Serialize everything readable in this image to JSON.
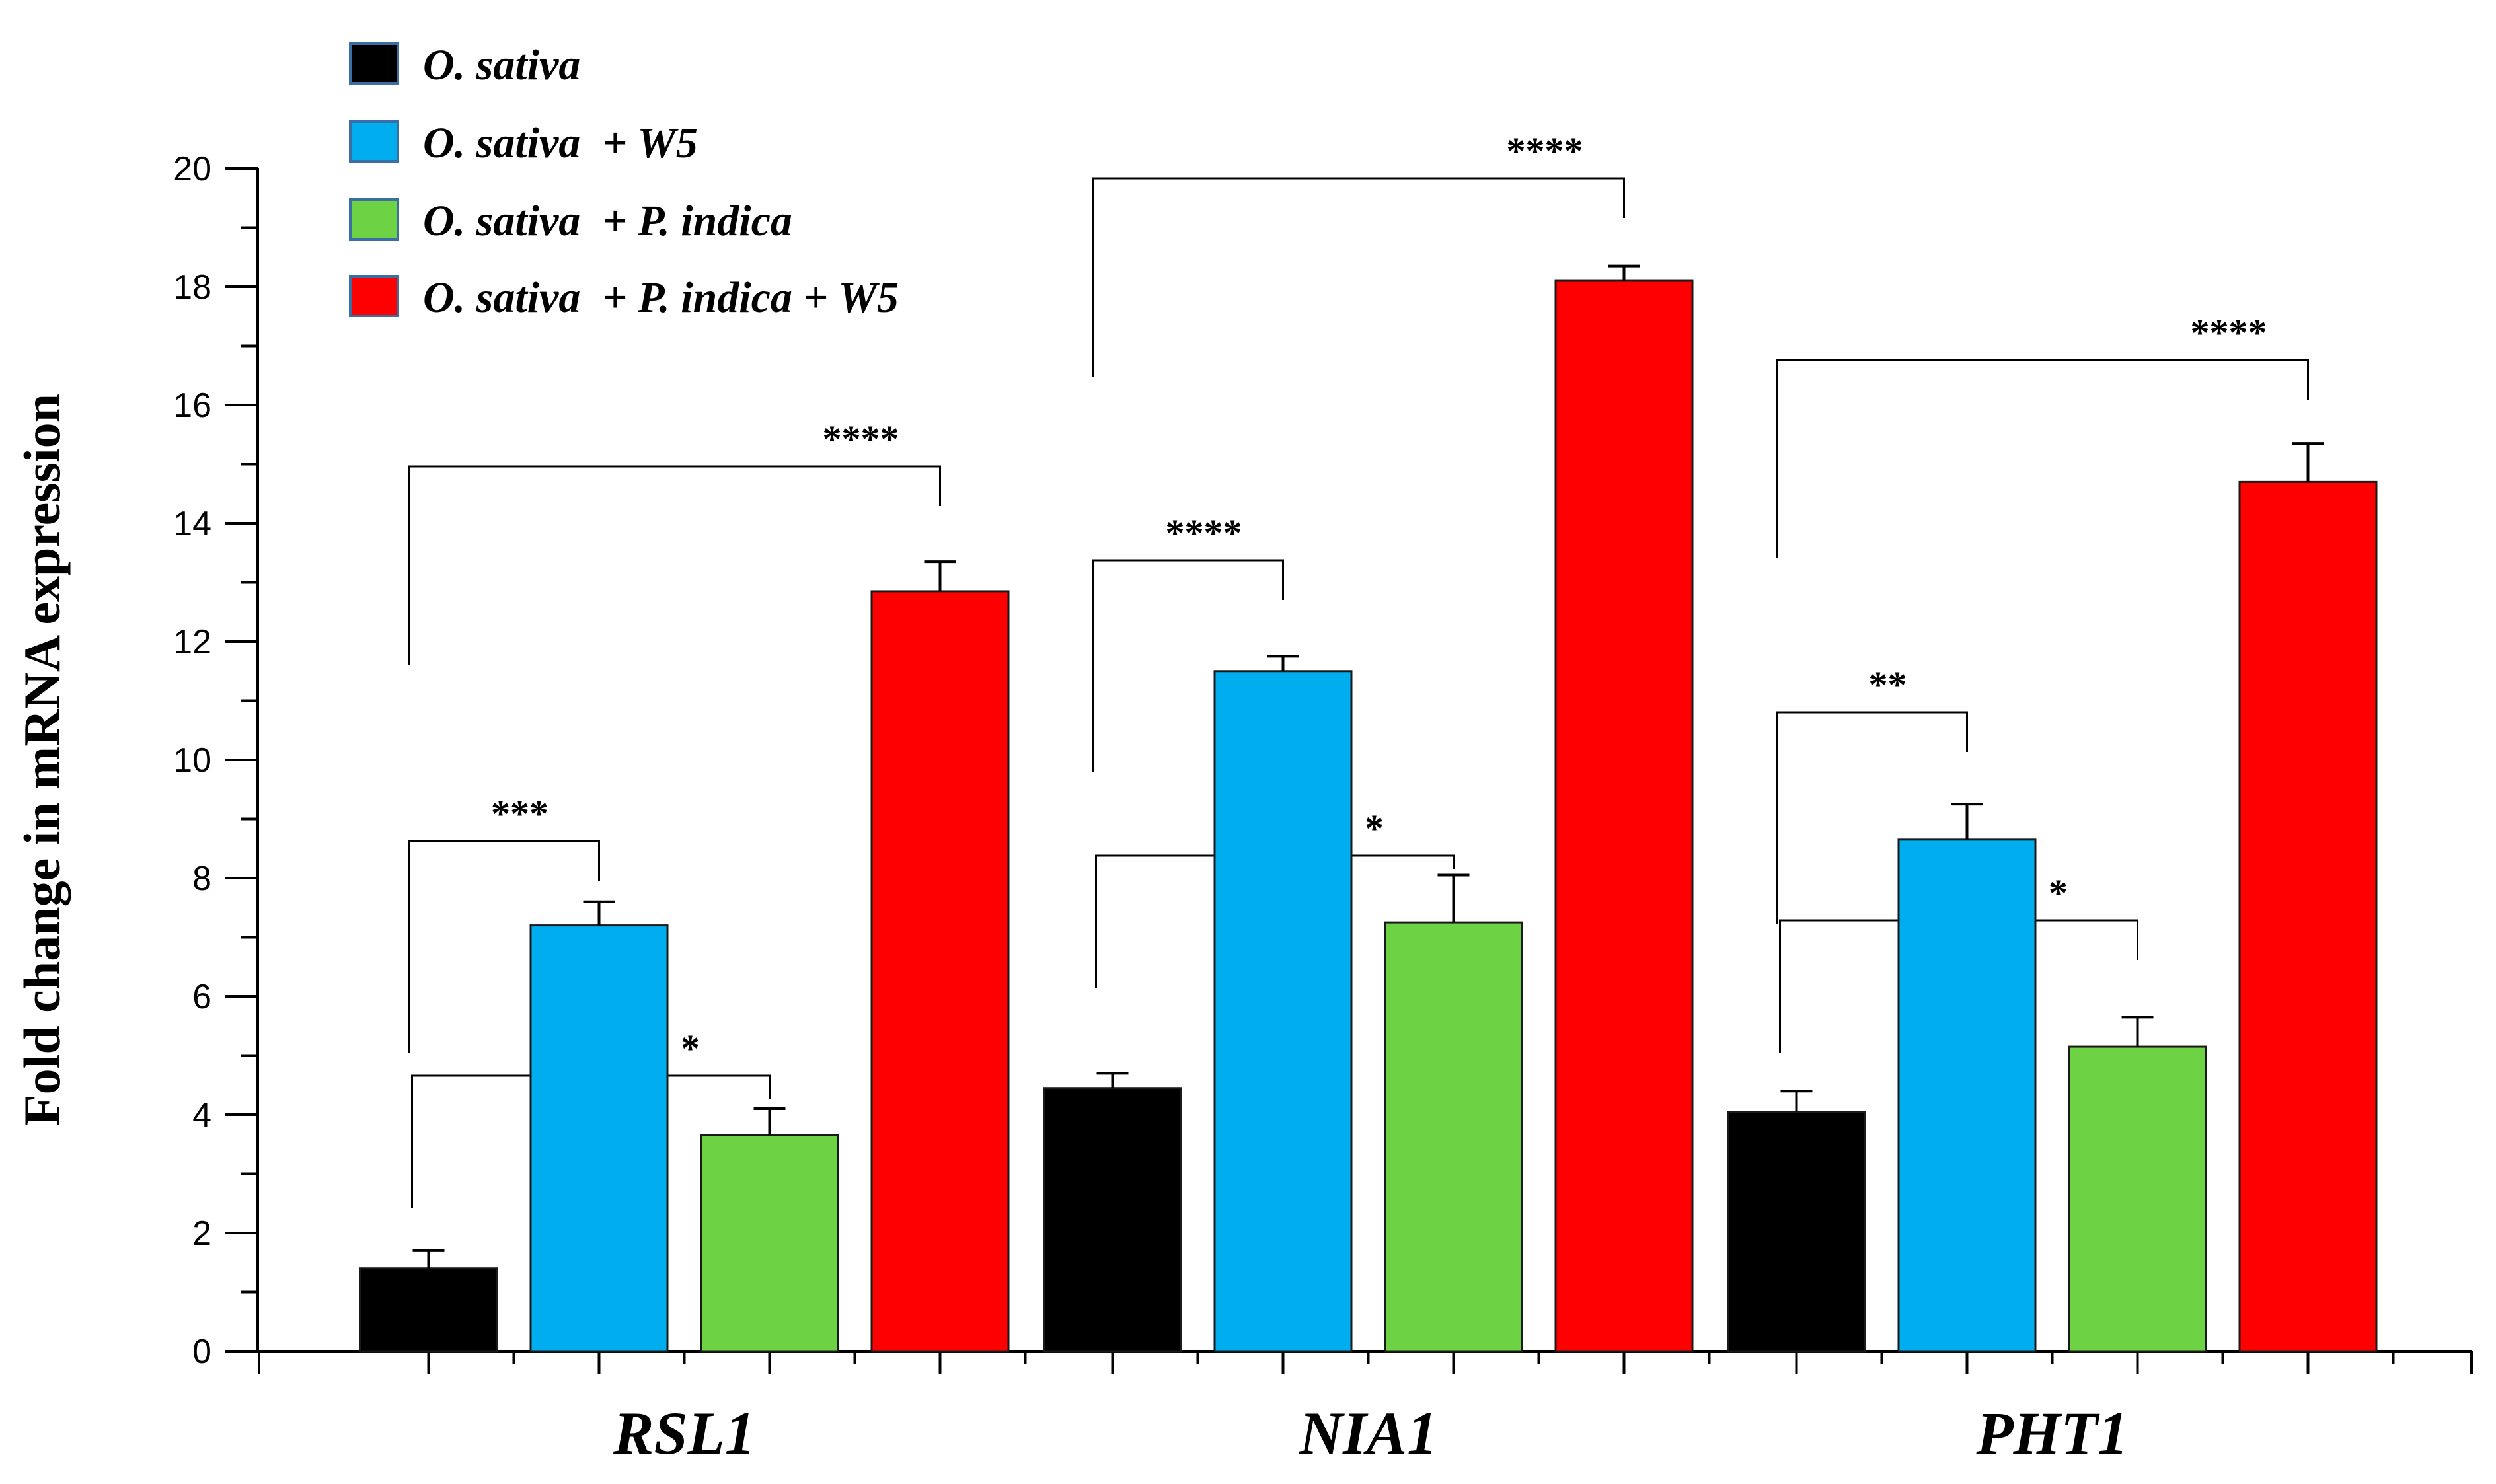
{
  "chart_data": {
    "type": "bar",
    "title": "",
    "xlabel": "",
    "ylabel": "Fold change in mRNA expression",
    "ylim": [
      0,
      20
    ],
    "yticks": [
      0,
      2,
      4,
      6,
      8,
      10,
      12,
      14,
      16,
      18,
      20
    ],
    "categories": [
      "RSL1",
      "NIA1",
      "PHT1"
    ],
    "series": [
      {
        "name": "O. sativa",
        "color": "#000000",
        "values": [
          1.4,
          4.45,
          4.05
        ],
        "errors": [
          0.3,
          0.25,
          0.35
        ]
      },
      {
        "name": "O. sativa  + W5",
        "color": "#00aeef",
        "values": [
          7.2,
          11.5,
          8.65
        ],
        "errors": [
          0.4,
          0.25,
          0.6
        ]
      },
      {
        "name": "O. sativa  + P. indica",
        "color": "#6dd244",
        "values": [
          3.65,
          7.25,
          5.15
        ],
        "errors": [
          0.45,
          0.8,
          0.5
        ]
      },
      {
        "name": "O. sativa  + P. indica + W5",
        "color": "#ff0000",
        "values": [
          12.85,
          18.1,
          14.7
        ],
        "errors": [
          0.5,
          0.25,
          0.65
        ]
      }
    ],
    "legend_position": "top-left",
    "significance": [
      {
        "category": 0,
        "from": 0,
        "to": 1,
        "label": "***"
      },
      {
        "category": 0,
        "from": 0,
        "to": 2,
        "label": "*"
      },
      {
        "category": 0,
        "from": 0,
        "to": 3,
        "label": "****"
      },
      {
        "category": 1,
        "from": 0,
        "to": 1,
        "label": "****"
      },
      {
        "category": 1,
        "from": 0,
        "to": 2,
        "label": "*"
      },
      {
        "category": 1,
        "from": 0,
        "to": 3,
        "label": "****"
      },
      {
        "category": 2,
        "from": 0,
        "to": 1,
        "label": "**"
      },
      {
        "category": 2,
        "from": 0,
        "to": 2,
        "label": "*"
      },
      {
        "category": 2,
        "from": 0,
        "to": 3,
        "label": "****"
      }
    ]
  }
}
